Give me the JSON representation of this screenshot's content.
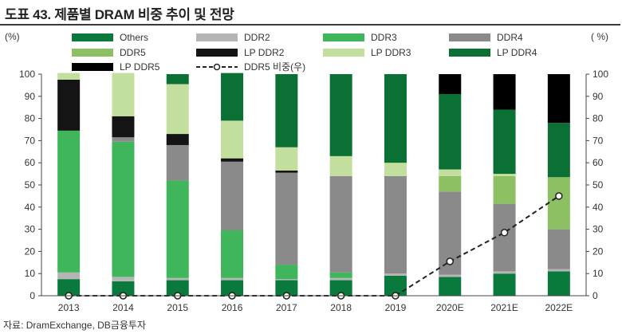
{
  "figure_title": "도표 43. 제품별 DRAM 비중 추이 및 전망",
  "source": "자료: DramExchange, DB금융투자",
  "chart_data": {
    "type": "bar",
    "stacked": true,
    "categories": [
      "2013",
      "2014",
      "2015",
      "2016",
      "2017",
      "2018",
      "2019",
      "2020E",
      "2021E",
      "2022E"
    ],
    "y_unit_left": "(%)",
    "y_unit_right": "( %)",
    "ylim": [
      0,
      100
    ],
    "yticks": [
      0,
      10,
      20,
      30,
      40,
      50,
      60,
      70,
      80,
      90,
      100
    ],
    "grid": false,
    "legend_position": "top",
    "series": [
      {
        "name": "Others",
        "color": "#0a7a3c",
        "values": [
          7.5,
          6.5,
          7,
          7,
          7,
          7,
          9,
          8.5,
          10,
          11
        ]
      },
      {
        "name": "DDR2",
        "color": "#b5b5b5",
        "values": [
          3,
          2,
          1,
          1,
          0.5,
          1,
          1,
          1,
          1,
          1
        ]
      },
      {
        "name": "DDR3",
        "color": "#3fb55c",
        "values": [
          64,
          61,
          44,
          21.5,
          6.5,
          2.5,
          0,
          0,
          0,
          0
        ]
      },
      {
        "name": "DDR4",
        "color": "#8a8a8a",
        "values": [
          0,
          2,
          16,
          31,
          41.5,
          43.5,
          44,
          37.5,
          30.5,
          18
        ]
      },
      {
        "name": "DDR5",
        "color": "#8cc063",
        "values": [
          0,
          0,
          0,
          0,
          0,
          0,
          0,
          7,
          12.5,
          23.5
        ]
      },
      {
        "name": "LP DDR2",
        "color": "#141414",
        "values": [
          23,
          9.5,
          5,
          1.5,
          1,
          0,
          0,
          0,
          0,
          0
        ]
      },
      {
        "name": "LP DDR3",
        "color": "#c3df9d",
        "values": [
          3,
          19.5,
          22.5,
          17,
          10.5,
          9,
          6,
          3,
          1,
          0
        ]
      },
      {
        "name": "LP DDR4",
        "color": "#0b7034",
        "values": [
          0,
          0,
          4.5,
          21.5,
          33,
          37,
          40,
          34,
          29,
          24.5
        ]
      },
      {
        "name": "LP DDR5",
        "color": "#000000",
        "values": [
          0,
          0,
          0,
          0,
          0,
          0,
          0,
          9,
          16,
          22
        ]
      }
    ],
    "line_series": {
      "name": "DDR5 비중(우)",
      "axis": "right",
      "style": "dashed",
      "color": "#222222",
      "values": [
        0,
        0,
        0,
        0,
        0,
        0,
        0,
        15.5,
        28.5,
        45
      ]
    }
  }
}
